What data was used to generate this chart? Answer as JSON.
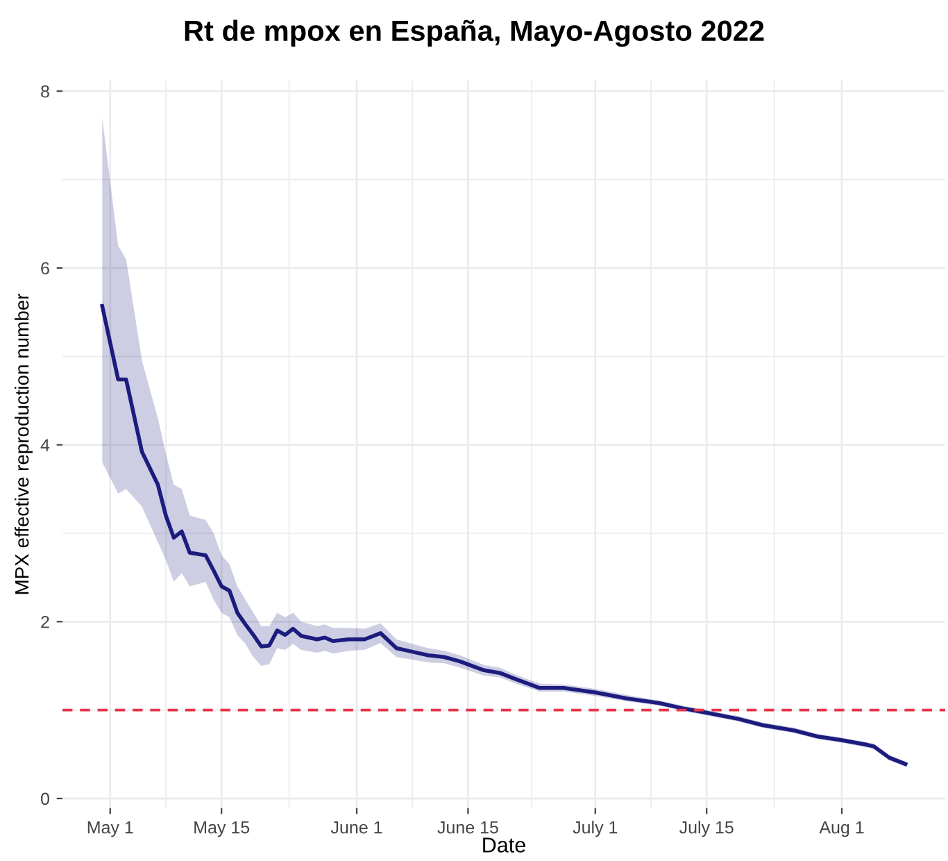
{
  "chart_data": {
    "type": "line",
    "title": "Rt de mpox en España, Mayo-Agosto 2022",
    "xlabel": "Date",
    "ylabel": "MPX effective reproduction number",
    "x": [
      "2022-04-30",
      "2022-05-02",
      "2022-05-03",
      "2022-05-05",
      "2022-05-07",
      "2022-05-08",
      "2022-05-09",
      "2022-05-10",
      "2022-05-11",
      "2022-05-13",
      "2022-05-14",
      "2022-05-15",
      "2022-05-16",
      "2022-05-17",
      "2022-05-18",
      "2022-05-19",
      "2022-05-20",
      "2022-05-21",
      "2022-05-22",
      "2022-05-23",
      "2022-05-24",
      "2022-05-25",
      "2022-05-27",
      "2022-05-28",
      "2022-05-29",
      "2022-05-31",
      "2022-06-02",
      "2022-06-04",
      "2022-06-06",
      "2022-06-08",
      "2022-06-10",
      "2022-06-12",
      "2022-06-14",
      "2022-06-17",
      "2022-06-19",
      "2022-06-21",
      "2022-06-24",
      "2022-06-27",
      "2022-07-01",
      "2022-07-05",
      "2022-07-09",
      "2022-07-12",
      "2022-07-15",
      "2022-07-19",
      "2022-07-22",
      "2022-07-26",
      "2022-07-29",
      "2022-08-01",
      "2022-08-04",
      "2022-08-05",
      "2022-08-07",
      "2022-08-09"
    ],
    "series": [
      {
        "color": "#1c1c7e",
        "values": [
          5.57,
          4.74,
          4.74,
          3.92,
          3.55,
          3.2,
          2.95,
          3.02,
          2.78,
          2.75,
          2.58,
          2.4,
          2.35,
          2.1,
          1.97,
          1.85,
          1.72,
          1.73,
          1.9,
          1.85,
          1.92,
          1.84,
          1.8,
          1.82,
          1.78,
          1.8,
          1.8,
          1.87,
          1.7,
          1.66,
          1.62,
          1.6,
          1.55,
          1.45,
          1.42,
          1.35,
          1.25,
          1.25,
          1.2,
          1.13,
          1.08,
          1.02,
          0.97,
          0.9,
          0.83,
          0.77,
          0.7,
          0.66,
          0.61,
          0.59,
          0.46,
          0.39
        ],
        "lower": [
          3.8,
          3.45,
          3.5,
          3.3,
          2.9,
          2.7,
          2.45,
          2.55,
          2.4,
          2.45,
          2.25,
          2.1,
          2.05,
          1.85,
          1.75,
          1.6,
          1.5,
          1.52,
          1.7,
          1.68,
          1.75,
          1.68,
          1.65,
          1.67,
          1.64,
          1.67,
          1.68,
          1.76,
          1.6,
          1.57,
          1.54,
          1.53,
          1.48,
          1.39,
          1.37,
          1.3,
          1.21,
          1.21,
          1.16,
          1.1,
          1.05,
          0.99,
          0.94,
          0.87,
          0.8,
          0.74,
          0.67,
          0.63,
          0.58,
          0.56,
          0.43,
          0.36
        ],
        "upper": [
          7.7,
          6.25,
          6.1,
          4.95,
          4.3,
          3.9,
          3.55,
          3.5,
          3.2,
          3.15,
          3.0,
          2.75,
          2.65,
          2.4,
          2.25,
          2.1,
          1.95,
          1.95,
          2.1,
          2.05,
          2.1,
          2.0,
          1.95,
          1.97,
          1.93,
          1.93,
          1.92,
          1.98,
          1.8,
          1.75,
          1.7,
          1.67,
          1.62,
          1.51,
          1.48,
          1.4,
          1.3,
          1.29,
          1.24,
          1.17,
          1.11,
          1.05,
          1.0,
          0.93,
          0.86,
          0.8,
          0.73,
          0.69,
          0.64,
          0.62,
          0.49,
          0.42
        ]
      }
    ],
    "xlim": [
      "2022-04-25",
      "2022-08-14"
    ],
    "xticks": [
      {
        "value": "2022-05-01",
        "label": "May 1"
      },
      {
        "value": "2022-05-15",
        "label": "May 15"
      },
      {
        "value": "2022-06-01",
        "label": "June 1"
      },
      {
        "value": "2022-06-15",
        "label": "June 15"
      },
      {
        "value": "2022-07-01",
        "label": "July 1"
      },
      {
        "value": "2022-07-15",
        "label": "July 15"
      },
      {
        "value": "2022-08-01",
        "label": "Aug 1"
      }
    ],
    "ylim": [
      -0.11,
      8.12
    ],
    "yticks": [
      0,
      2,
      4,
      6,
      8
    ],
    "ref_lines": [
      {
        "axis": "y",
        "value": 1,
        "color": "#e8344a",
        "line_style": "dashed"
      }
    ],
    "grid": true,
    "legend": false,
    "marker": "none",
    "line_style": "solid"
  }
}
